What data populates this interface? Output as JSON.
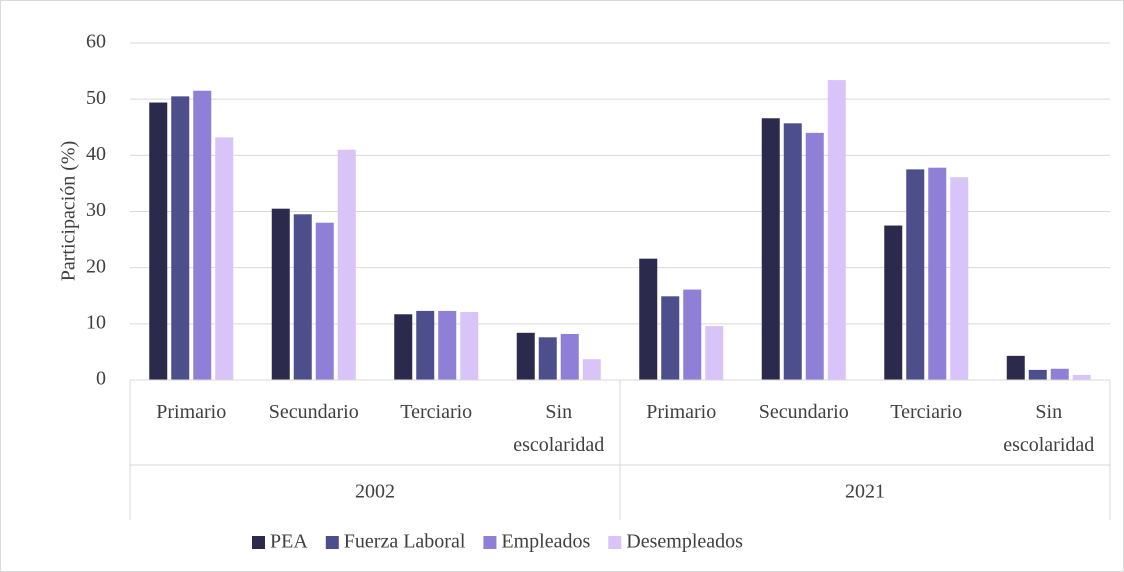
{
  "chart_data": {
    "type": "bar",
    "ylabel": "Participación (%)",
    "categories": [
      "Primario",
      "Secundario",
      "Terciario",
      "Sin escolaridad",
      "Primario",
      "Secundario",
      "Terciario",
      "Sin escolaridad"
    ],
    "groups": [
      "2002",
      "2021"
    ],
    "series": [
      {
        "name": "PEA",
        "color": "#2b2a4c",
        "values": [
          49.4,
          30.5,
          11.7,
          8.4,
          21.6,
          46.6,
          27.5,
          4.3
        ]
      },
      {
        "name": "Fuerza Laboral",
        "color": "#4c4f8c",
        "values": [
          50.5,
          29.5,
          12.3,
          7.6,
          14.9,
          45.7,
          37.5,
          1.8
        ]
      },
      {
        "name": "Empleados",
        "color": "#8f7fd6",
        "values": [
          51.5,
          28.0,
          12.3,
          8.2,
          16.1,
          44.0,
          37.8,
          2.0
        ]
      },
      {
        "name": "Desempleados",
        "color": "#d8c4f9",
        "values": [
          43.2,
          41.0,
          12.1,
          3.7,
          9.6,
          53.4,
          36.1,
          0.9
        ]
      }
    ],
    "ylim": [
      0,
      60
    ],
    "yticks": [
      0,
      10,
      20,
      30,
      40,
      50,
      60
    ],
    "grid": true,
    "legend": "bottom"
  }
}
